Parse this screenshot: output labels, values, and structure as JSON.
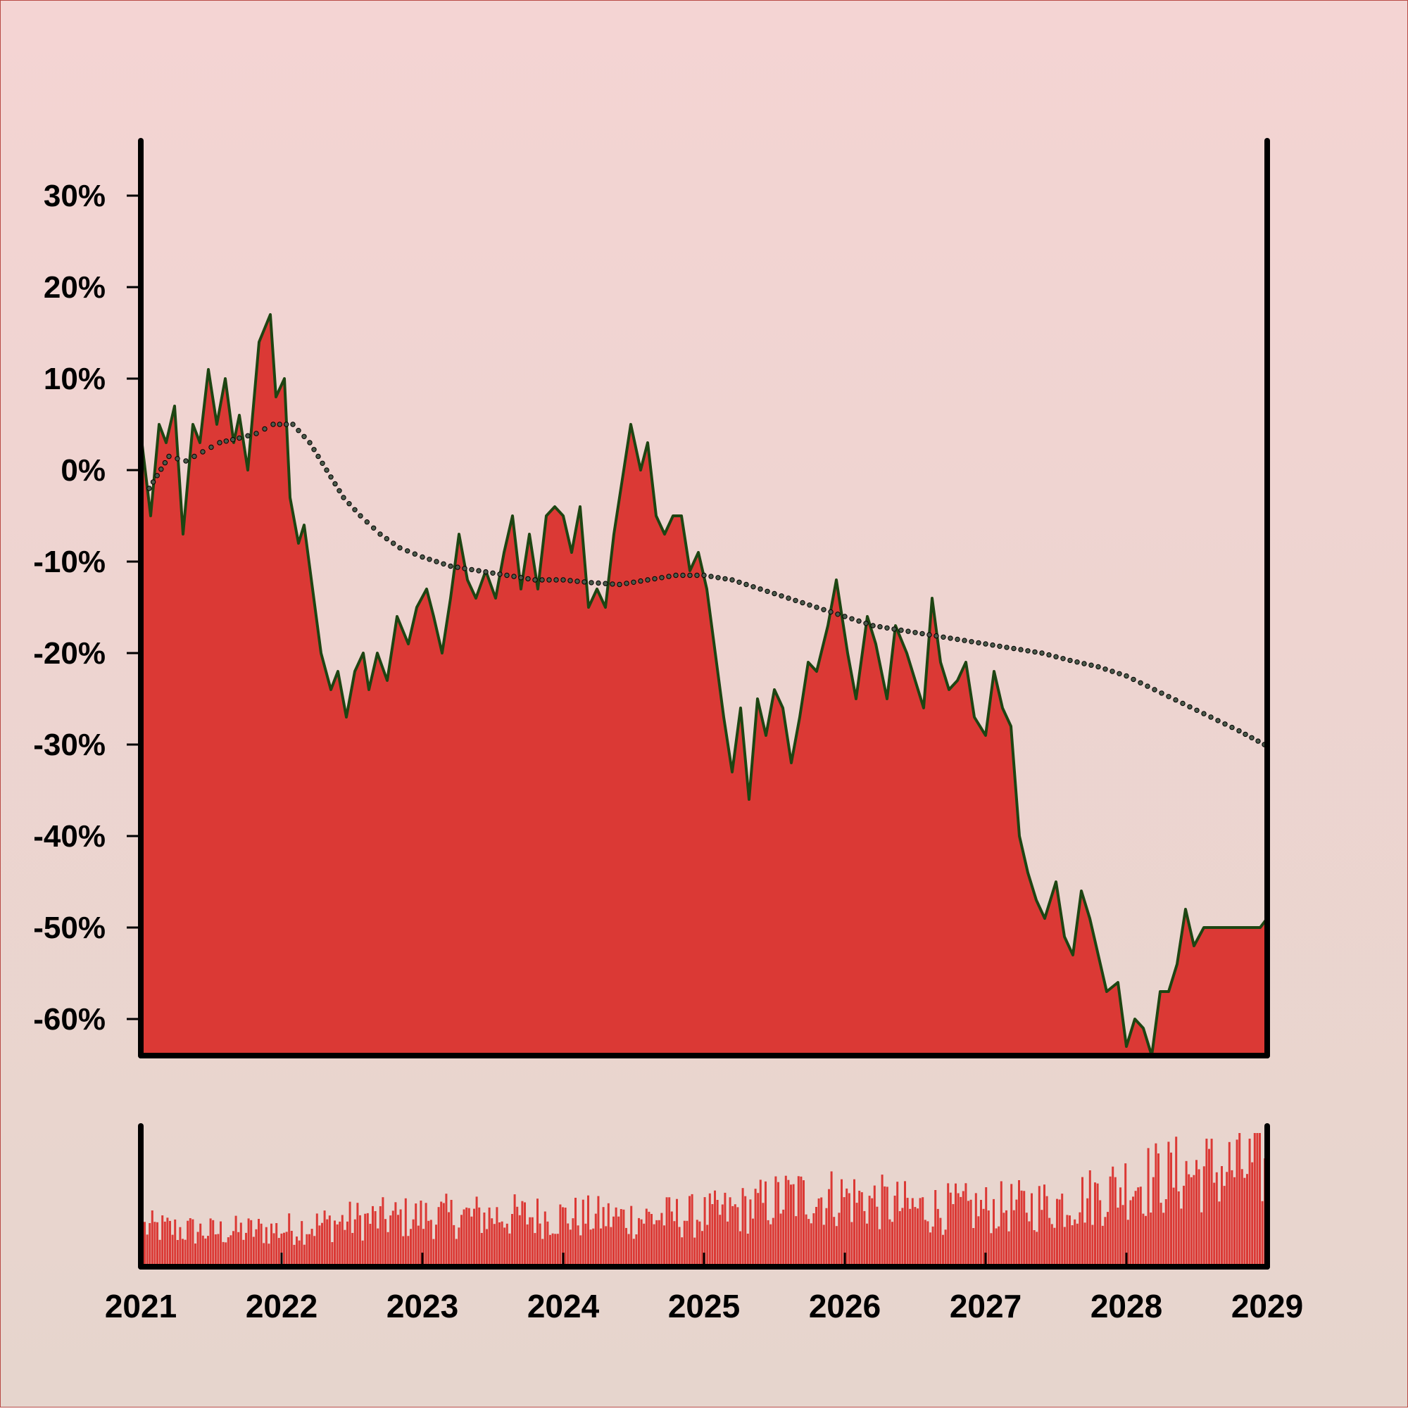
{
  "colors": {
    "background_top": "#f4d4d3",
    "background_bottom": "#e6d5cd",
    "area_fill": "#db3935",
    "line_stroke": "#1d4512",
    "trend_marker": "#4a5a4a",
    "axis": "#000000"
  },
  "chart_data": [
    {
      "type": "area",
      "title": "",
      "xlabel": "",
      "ylabel": "",
      "xlim": [
        2021,
        2029
      ],
      "ylim": [
        -64,
        36
      ],
      "grid": false,
      "legend": "none",
      "y_ticks": [
        30,
        20,
        10,
        0,
        -10,
        -20,
        -30,
        -40,
        -50,
        -60
      ],
      "y_tick_labels": [
        "30%",
        "20%",
        "10%",
        "0%",
        "-10%",
        "-20%",
        "-30%",
        "-40%",
        "-50%",
        "-60%"
      ],
      "series": [
        {
          "role": "cumulative return",
          "x": [
            2021.0,
            2021.07,
            2021.13,
            2021.18,
            2021.24,
            2021.3,
            2021.37,
            2021.42,
            2021.48,
            2021.54,
            2021.6,
            2021.66,
            2021.7,
            2021.76,
            2021.84,
            2021.92,
            2021.96,
            2022.02,
            2022.06,
            2022.12,
            2022.16,
            2022.22,
            2022.28,
            2022.35,
            2022.4,
            2022.46,
            2022.52,
            2022.58,
            2022.62,
            2022.68,
            2022.75,
            2022.82,
            2022.9,
            2022.96,
            2023.03,
            2023.08,
            2023.14,
            2023.2,
            2023.26,
            2023.32,
            2023.38,
            2023.45,
            2023.52,
            2023.58,
            2023.64,
            2023.7,
            2023.76,
            2023.82,
            2023.88,
            2023.94,
            2024.0,
            2024.06,
            2024.12,
            2024.18,
            2024.24,
            2024.3,
            2024.36,
            2024.42,
            2024.48,
            2024.55,
            2024.6,
            2024.66,
            2024.72,
            2024.78,
            2024.84,
            2024.9,
            2024.96,
            2025.02,
            2025.08,
            2025.14,
            2025.2,
            2025.26,
            2025.32,
            2025.38,
            2025.44,
            2025.5,
            2025.56,
            2025.62,
            2025.68,
            2025.74,
            2025.8,
            2025.88,
            2025.94,
            2026.02,
            2026.08,
            2026.16,
            2026.22,
            2026.3,
            2026.36,
            2026.44,
            2026.5,
            2026.56,
            2026.62,
            2026.68,
            2026.74,
            2026.8,
            2026.86,
            2026.92,
            2027.0,
            2027.06,
            2027.12,
            2027.18,
            2027.24,
            2027.3,
            2027.36,
            2027.42,
            2027.5,
            2027.56,
            2027.62,
            2027.68,
            2027.74,
            2027.8,
            2027.86,
            2027.94,
            2028.0,
            2028.06,
            2028.12,
            2028.18,
            2028.24,
            2028.3,
            2028.36,
            2028.42,
            2028.48,
            2028.55,
            2028.6,
            2028.66,
            2028.72,
            2028.78,
            2028.84,
            2028.9,
            2028.95,
            2029.0
          ],
          "y": [
            4,
            -5,
            5,
            3,
            7,
            -7,
            5,
            3,
            11,
            5,
            10,
            3,
            6,
            0,
            14,
            17,
            8,
            10,
            -3,
            -8,
            -6,
            -13,
            -20,
            -24,
            -22,
            -27,
            -22,
            -20,
            -24,
            -20,
            -23,
            -16,
            -19,
            -15,
            -13,
            -16,
            -20,
            -14,
            -7,
            -12,
            -14,
            -11,
            -14,
            -9,
            -5,
            -13,
            -7,
            -13,
            -5,
            -4,
            -5,
            -9,
            -4,
            -15,
            -13,
            -15,
            -7,
            -1,
            5,
            0,
            3,
            -5,
            -7,
            -5,
            -5,
            -11,
            -9,
            -13,
            -20,
            -27,
            -33,
            -26,
            -36,
            -25,
            -29,
            -24,
            -26,
            -32,
            -27,
            -21,
            -22,
            -17,
            -12,
            -20,
            -25,
            -16,
            -19,
            -25,
            -17,
            -20,
            -23,
            -26,
            -14,
            -21,
            -24,
            -23,
            -21,
            -27,
            -29,
            -22,
            -26,
            -28,
            -40,
            -44,
            -47,
            -49,
            -45,
            -51,
            -53,
            -46,
            -49,
            -53,
            -57,
            -56,
            -63,
            -60,
            -61,
            -64,
            -57,
            -57,
            -54,
            -48,
            -52,
            -50,
            -50,
            -50,
            -50,
            -50,
            -50,
            -50,
            -50,
            -49
          ]
        },
        {
          "role": "smoothed trend",
          "style": "dotted markers",
          "x": [
            2021.06,
            2021.2,
            2021.32,
            2021.44,
            2021.56,
            2021.7,
            2021.82,
            2021.94,
            2022.08,
            2022.2,
            2022.32,
            2022.44,
            2022.56,
            2022.7,
            2022.84,
            2023.0,
            2023.2,
            2023.4,
            2023.6,
            2023.8,
            2024.0,
            2024.2,
            2024.4,
            2024.6,
            2024.8,
            2025.0,
            2025.2,
            2025.4,
            2025.6,
            2025.8,
            2026.0,
            2026.2,
            2026.4,
            2026.6,
            2026.8,
            2027.0,
            2027.2,
            2027.4,
            2027.6,
            2027.8,
            2028.0,
            2028.2,
            2028.4,
            2028.6,
            2028.8,
            2028.98
          ],
          "y": [
            -2,
            1.5,
            1,
            2,
            3,
            3.5,
            4,
            5,
            5,
            3,
            0,
            -3,
            -5,
            -7,
            -8.5,
            -9.5,
            -10.5,
            -11,
            -11.5,
            -12,
            -12,
            -12.3,
            -12.5,
            -12,
            -11.5,
            -11.5,
            -12,
            -13,
            -14,
            -15,
            -16,
            -17,
            -17.5,
            -18,
            -18.5,
            -19,
            -19.5,
            -20,
            -20.8,
            -21.5,
            -22.5,
            -24,
            -25.5,
            -27,
            -28.5,
            -30
          ]
        }
      ]
    },
    {
      "type": "bar",
      "title": "",
      "xlabel": "",
      "ylabel": "",
      "xlim": [
        2021,
        2029
      ],
      "x_ticks": [
        2021,
        2022,
        2023,
        2024,
        2025,
        2026,
        2027,
        2028,
        2029
      ],
      "x_tick_labels": [
        "2021",
        "2022",
        "2023",
        "2024",
        "2025",
        "2026",
        "2027",
        "2028",
        "2029"
      ],
      "y_ticks_shown": false,
      "level_envelope": {
        "x": [
          2021,
          2021.5,
          2022,
          2022.5,
          2023,
          2023.5,
          2024,
          2024.5,
          2025,
          2025.3,
          2025.6,
          2026,
          2026.5,
          2027,
          2027.5,
          2027.8,
          2028,
          2028.4,
          2028.8,
          2029
        ],
        "level": [
          0.34,
          0.3,
          0.32,
          0.4,
          0.43,
          0.44,
          0.43,
          0.42,
          0.44,
          0.5,
          0.6,
          0.6,
          0.5,
          0.5,
          0.54,
          0.62,
          0.72,
          0.8,
          0.85,
          0.86
        ]
      }
    }
  ]
}
